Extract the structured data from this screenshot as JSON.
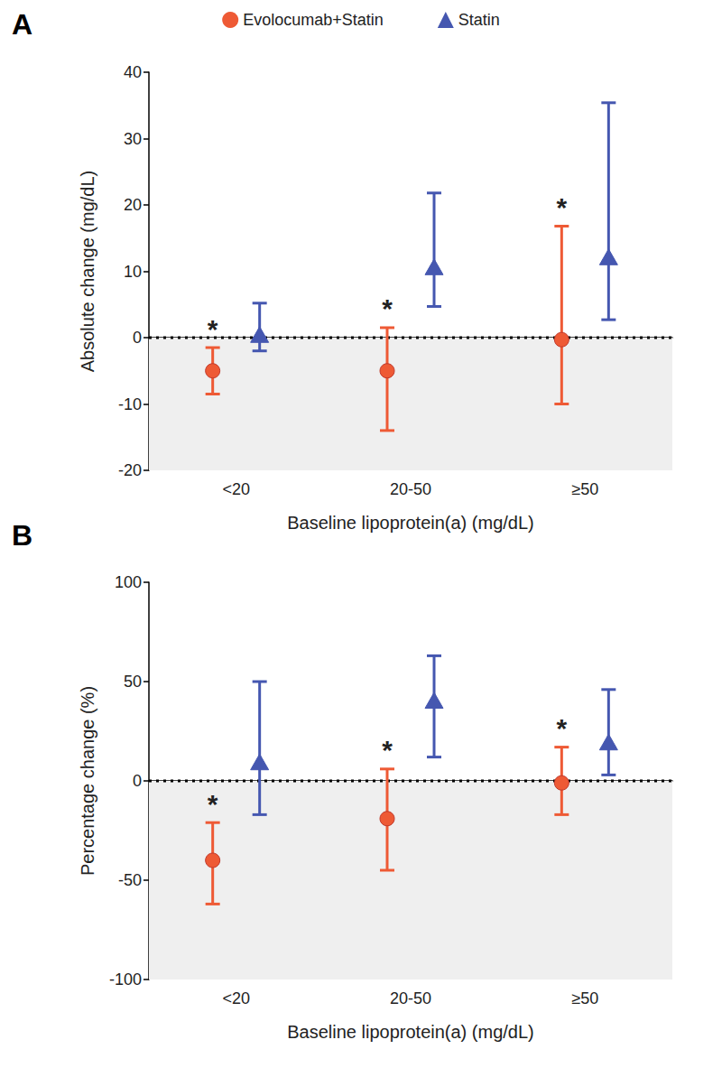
{
  "chart_data": [
    {
      "type": "scatter",
      "title": "A",
      "legend": "top",
      "x_label": "Baseline lipoprotein(a) (mg/dL)",
      "y_label": "Absolute change (mg/dL)",
      "categories": [
        "<20",
        "20-50",
        "≥50"
      ],
      "ylim": [
        -20,
        40
      ],
      "yticks": [
        -20,
        -10,
        0,
        10,
        20,
        30,
        40
      ],
      "reference_line": 0,
      "series": [
        {
          "name": "Evolocumab+Statin",
          "color": "#ee5a35",
          "marker": "circle",
          "values": [
            -5,
            -5,
            -0.3
          ],
          "lower": [
            -8.5,
            -14,
            -10
          ],
          "upper": [
            -1.5,
            1.5,
            16.8
          ]
        },
        {
          "name": "Statin",
          "color": "#4557b0",
          "marker": "triangle",
          "values": [
            0.3,
            10.5,
            12
          ],
          "lower": [
            -2,
            4.7,
            2.7
          ],
          "upper": [
            5.2,
            21.8,
            35.4
          ]
        }
      ],
      "annotations": [
        {
          "text": "*",
          "series": "Evolocumab+Statin",
          "category": "<20"
        },
        {
          "text": "*",
          "series": "Evolocumab+Statin",
          "category": "20-50"
        },
        {
          "text": "*",
          "series": "Evolocumab+Statin",
          "category": "≥50"
        }
      ]
    },
    {
      "type": "scatter",
      "title": "B",
      "x_label": "Baseline lipoprotein(a) (mg/dL)",
      "y_label": "Percentage change (%)",
      "categories": [
        "<20",
        "20-50",
        "≥50"
      ],
      "ylim": [
        -100,
        100
      ],
      "yticks": [
        -100,
        -50,
        0,
        50,
        100
      ],
      "reference_line": 0,
      "series": [
        {
          "name": "Evolocumab+Statin",
          "color": "#ee5a35",
          "marker": "circle",
          "values": [
            -40,
            -19,
            -1
          ],
          "lower": [
            -62,
            -45,
            -17
          ],
          "upper": [
            -21,
            6,
            17
          ]
        },
        {
          "name": "Statin",
          "color": "#4557b0",
          "marker": "triangle",
          "values": [
            9,
            40,
            19
          ],
          "lower": [
            -17,
            12,
            3
          ],
          "upper": [
            50,
            63,
            46
          ]
        }
      ],
      "annotations": [
        {
          "text": "*",
          "series": "Evolocumab+Statin",
          "category": "<20"
        },
        {
          "text": "*",
          "series": "Evolocumab+Statin",
          "category": "20-50"
        },
        {
          "text": "*",
          "series": "Evolocumab+Statin",
          "category": "≥50"
        }
      ]
    }
  ]
}
